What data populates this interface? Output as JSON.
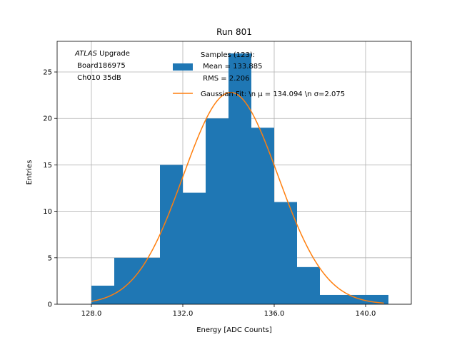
{
  "chart_data": {
    "type": "histogram",
    "title": "Run 801",
    "xlabel": "Energy [ADC Counts]",
    "ylabel": "Entries",
    "xlim": [
      126.5,
      142.0
    ],
    "ylim": [
      0,
      28.3
    ],
    "grid": true,
    "x_ticks": [
      128.0,
      132.0,
      136.0,
      140.0
    ],
    "x_tick_labels": [
      "128.0",
      "132.0",
      "136.0",
      "140.0"
    ],
    "y_ticks": [
      0,
      5,
      10,
      15,
      20,
      25
    ],
    "y_tick_labels": [
      "0",
      "5",
      "10",
      "15",
      "20",
      "25"
    ],
    "bins": [
      {
        "x0": 128,
        "x1": 129,
        "count": 2
      },
      {
        "x0": 129,
        "x1": 130,
        "count": 5
      },
      {
        "x0": 130,
        "x1": 131,
        "count": 5
      },
      {
        "x0": 131,
        "x1": 132,
        "count": 15
      },
      {
        "x0": 132,
        "x1": 133,
        "count": 12
      },
      {
        "x0": 133,
        "x1": 134,
        "count": 20
      },
      {
        "x0": 134,
        "x1": 135,
        "count": 27
      },
      {
        "x0": 135,
        "x1": 136,
        "count": 19
      },
      {
        "x0": 136,
        "x1": 137,
        "count": 11
      },
      {
        "x0": 137,
        "x1": 138,
        "count": 4
      },
      {
        "x0": 138,
        "x1": 139,
        "count": 1
      },
      {
        "x0": 139,
        "x1": 140,
        "count": 1
      },
      {
        "x0": 140,
        "x1": 141,
        "count": 1
      }
    ],
    "fit": {
      "name": "Gaussian Fit",
      "mu": 134.094,
      "sigma": 2.075,
      "amplitude": 22.8,
      "x_range": [
        128.0,
        140.8
      ]
    },
    "series": [
      {
        "name": "Samples",
        "color": "#1f77b4"
      },
      {
        "name": "Gaussian Fit",
        "color": "#ff7f0e"
      }
    ],
    "legend": {
      "placement": "top-center",
      "samples_lines": [
        "Samples (123):",
        " Mean = 133.885",
        " RMS = 2.206"
      ],
      "fit_line": "Gaussian Fit: \\n μ = 134.094 \\n σ=2.075"
    },
    "info_box": {
      "italic": "ATLAS",
      "rest": " Upgrade",
      "line2": " Board186975",
      "line3": " Ch010 35dB"
    }
  }
}
